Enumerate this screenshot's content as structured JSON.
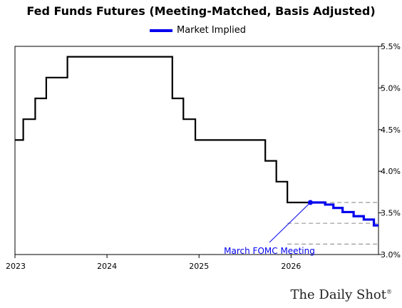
{
  "chart_data": {
    "type": "line",
    "title": "Fed Funds Futures (Meeting-Matched, Basis Adjusted)",
    "ylim": [
      3.0,
      5.5
    ],
    "xlim": [
      2023.0,
      2026.95
    ],
    "y_ticks": [
      3.0,
      3.5,
      4.0,
      4.5,
      5.0,
      5.5
    ],
    "y_tick_labels": [
      "3.0%",
      "3.5%",
      "4.0%",
      "4.5%",
      "5.0%",
      "5.5%"
    ],
    "x_ticks": [
      2023,
      2024,
      2025,
      2026
    ],
    "x_tick_labels": [
      "2023",
      "2024",
      "2025",
      "2026"
    ],
    "grid": false,
    "legend_position": "top-center",
    "series": [
      {
        "color": "#000000",
        "step": true,
        "points": [
          [
            2023.0,
            4.375
          ],
          [
            2023.09,
            4.625
          ],
          [
            2023.22,
            4.875
          ],
          [
            2023.34,
            5.125
          ],
          [
            2023.57,
            5.375
          ],
          [
            2024.71,
            4.875
          ],
          [
            2024.83,
            4.625
          ],
          [
            2024.96,
            4.375
          ],
          [
            2025.72,
            4.125
          ],
          [
            2025.84,
            3.875
          ],
          [
            2025.96,
            3.625
          ],
          [
            2026.21,
            3.625
          ]
        ]
      },
      {
        "name": "Market Implied",
        "color": "#0000ee",
        "step": true,
        "points": [
          [
            2026.21,
            3.625
          ],
          [
            2026.37,
            3.6
          ],
          [
            2026.46,
            3.56
          ],
          [
            2026.56,
            3.51
          ],
          [
            2026.68,
            3.46
          ],
          [
            2026.79,
            3.42
          ],
          [
            2026.9,
            3.35
          ],
          [
            2026.95,
            3.35
          ]
        ]
      }
    ],
    "reference_lines": [
      {
        "y": 3.625,
        "style": "dashed",
        "color": "#999999",
        "x_from": 2025.96,
        "x_to": 2026.95
      },
      {
        "y": 3.375,
        "style": "dashed",
        "color": "#999999",
        "x_from": 2025.96,
        "x_to": 2026.95
      },
      {
        "y": 3.125,
        "style": "dashed",
        "color": "#999999",
        "x_from": 2025.96,
        "x_to": 2026.95
      }
    ],
    "annotations": [
      {
        "text": "March FOMC Meeting",
        "color": "#0000ee",
        "point": [
          2026.21,
          3.625
        ]
      }
    ],
    "legend": [
      {
        "label": "Market Implied",
        "color": "#0000ee"
      }
    ]
  },
  "watermark": {
    "text": "The Daily Shot",
    "mark": "®"
  }
}
